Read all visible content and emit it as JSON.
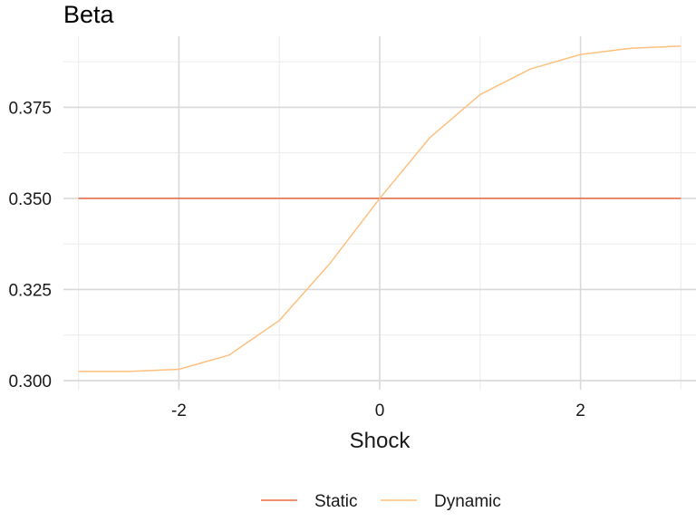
{
  "chart_data": {
    "type": "line",
    "title": "Beta",
    "xlabel": "Shock",
    "ylabel": "",
    "xlim": [
      -3.15,
      3.15
    ],
    "ylim": [
      0.2975,
      0.3945
    ],
    "x_ticks": [
      -2,
      0,
      2
    ],
    "x_tick_labels": [
      "-2",
      "0",
      "2"
    ],
    "x_minor_ticks": [
      -3,
      -1,
      1,
      3
    ],
    "y_ticks": [
      0.3,
      0.325,
      0.35,
      0.375
    ],
    "y_tick_labels": [
      "0.300",
      "0.325",
      "0.350",
      "0.375"
    ],
    "y_minor_ticks": [
      0.3125,
      0.3375,
      0.3625,
      0.3875
    ],
    "grid": true,
    "legend_position": "bottom",
    "series": [
      {
        "name": "Static",
        "color": "#E8683F",
        "x": [
          -3,
          3
        ],
        "y": [
          0.35,
          0.35
        ]
      },
      {
        "name": "Dynamic",
        "color": "#FDC07F",
        "x": [
          -3,
          -2.5,
          -2,
          -1.5,
          -1,
          -0.5,
          0,
          0.5,
          1,
          1.5,
          2,
          2.5,
          3
        ],
        "y": [
          0.3025,
          0.3025,
          0.3031,
          0.307,
          0.3165,
          0.332,
          0.35,
          0.3667,
          0.3785,
          0.3855,
          0.3895,
          0.3912,
          0.3918
        ]
      }
    ]
  }
}
